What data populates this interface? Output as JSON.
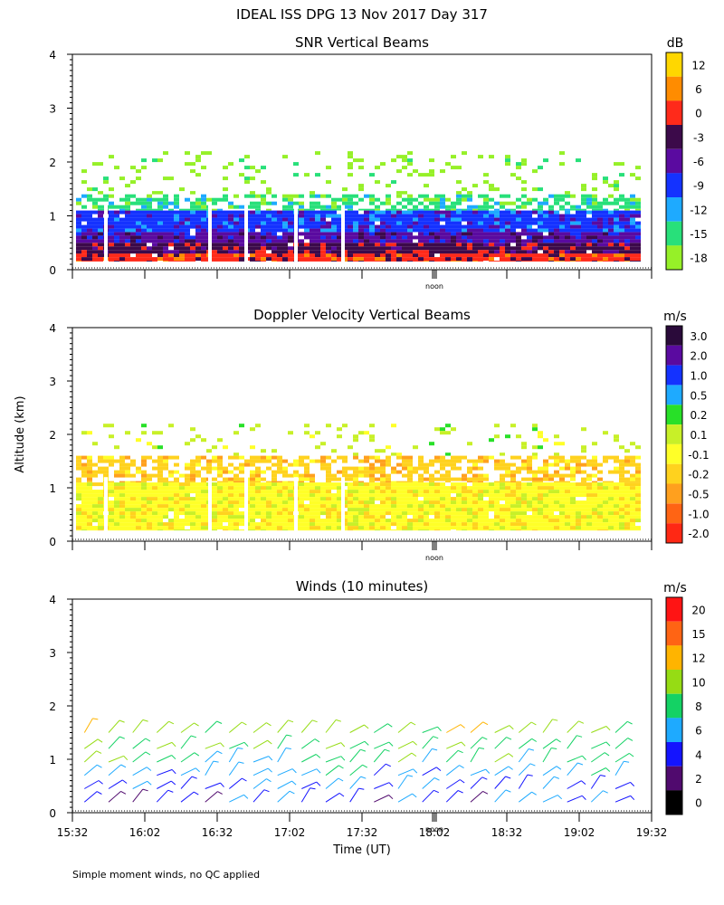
{
  "figure": {
    "title": "IDEAL ISS DPG  13 Nov 2017 Day 317",
    "ylabel": "Altitude (km)",
    "xlabel": "Time (UT)",
    "footnote": "Simple moment winds, no QC applied",
    "noon_label": "noon"
  },
  "chart_data": [
    {
      "type": "heatmap",
      "title": "SNR Vertical Beams",
      "ylabel": "Altitude (km)",
      "xlim_minutes_from_15_32": [
        0,
        240
      ],
      "ylim_km": [
        0,
        4
      ],
      "yticks": [
        "0",
        "1",
        "2",
        "3",
        "4"
      ],
      "grid": false,
      "colorbar": {
        "unit": "dB",
        "tick_labels": [
          "12",
          "6",
          "0",
          "-3",
          "-6",
          "-9",
          "-12",
          "-15",
          "-18"
        ],
        "colors": [
          "#ffd700",
          "#ff8c00",
          "#ff2a1a",
          "#3c0a4a",
          "#5a0aa0",
          "#1432ff",
          "#1eaaff",
          "#28e07a",
          "#96f028"
        ]
      },
      "layers": [
        {
          "altitude_km": [
            0.15,
            0.3
          ],
          "value_dB": 0,
          "coverage": "full"
        },
        {
          "altitude_km": [
            0.3,
            0.5
          ],
          "value_dB": -3,
          "coverage": "full"
        },
        {
          "altitude_km": [
            0.5,
            0.7
          ],
          "value_dB": -6,
          "coverage": "full"
        },
        {
          "altitude_km": [
            0.7,
            1.1
          ],
          "value_dB": -9,
          "coverage": "full"
        },
        {
          "altitude_km": [
            1.1,
            1.4
          ],
          "value_dB": -15,
          "coverage": "patchy"
        },
        {
          "altitude_km": [
            1.4,
            2.2
          ],
          "value_dB": -18,
          "coverage": "sparse"
        }
      ]
    },
    {
      "type": "heatmap",
      "title": "Doppler Velocity Vertical Beams",
      "ylabel": "Altitude (km)",
      "xlim_minutes_from_15_32": [
        0,
        240
      ],
      "ylim_km": [
        0,
        4
      ],
      "yticks": [
        "0",
        "1",
        "2",
        "3",
        "4"
      ],
      "grid": false,
      "colorbar": {
        "unit": "m/s",
        "tick_labels": [
          "3.0",
          "2.0",
          "1.0",
          "0.5",
          "0.2",
          "0.1",
          "-0.1",
          "-0.2",
          "-0.5",
          "-1.0",
          "-2.0"
        ],
        "colors": [
          "#2a0a3a",
          "#5a0aa0",
          "#1432ff",
          "#1eaaff",
          "#28e028",
          "#c8f028",
          "#ffff28",
          "#ffd21e",
          "#ffa01e",
          "#ff6414",
          "#ff2814"
        ]
      },
      "layers": [
        {
          "altitude_km": [
            0.2,
            1.1
          ],
          "value_ms": -0.1,
          "coverage": "full"
        },
        {
          "altitude_km": [
            1.1,
            1.6
          ],
          "value_ms": -0.2,
          "coverage": "patchy"
        },
        {
          "altitude_km": [
            1.6,
            2.2
          ],
          "value_ms": 0.1,
          "coverage": "sparse"
        }
      ]
    },
    {
      "type": "scatter",
      "title": "Winds (10 minutes)",
      "ylabel": "Altitude (km)",
      "xlabel": "Time (UT)",
      "xticks": [
        "15:32",
        "16:02",
        "16:32",
        "17:02",
        "17:32",
        "18:02",
        "18:32",
        "19:02",
        "19:32"
      ],
      "xlim_minutes_from_15_32": [
        0,
        240
      ],
      "ylim_km": [
        0,
        4
      ],
      "yticks": [
        "0",
        "1",
        "2",
        "3",
        "4"
      ],
      "grid": false,
      "colorbar": {
        "unit": "m/s",
        "tick_labels": [
          "20",
          "15",
          "12",
          "10",
          "8",
          "6",
          "4",
          "2",
          "0"
        ],
        "colors": [
          "#ff1414",
          "#ff6414",
          "#ffb400",
          "#96dc14",
          "#14d264",
          "#1eaaff",
          "#1414ff",
          "#500a6e",
          "#000000"
        ]
      },
      "barb_times_min": [
        5,
        15,
        25,
        35,
        45,
        55,
        65,
        75,
        85,
        95,
        105,
        115,
        125,
        135,
        145,
        155,
        165,
        175,
        185,
        195,
        205,
        215,
        225
      ],
      "barb_profile": [
        {
          "altitude_km": 0.2,
          "speed_ms": 4
        },
        {
          "altitude_km": 0.45,
          "speed_ms": 5
        },
        {
          "altitude_km": 0.7,
          "speed_ms": 6
        },
        {
          "altitude_km": 0.95,
          "speed_ms": 8
        },
        {
          "altitude_km": 1.2,
          "speed_ms": 9
        },
        {
          "altitude_km": 1.5,
          "speed_ms": 10
        }
      ]
    }
  ]
}
